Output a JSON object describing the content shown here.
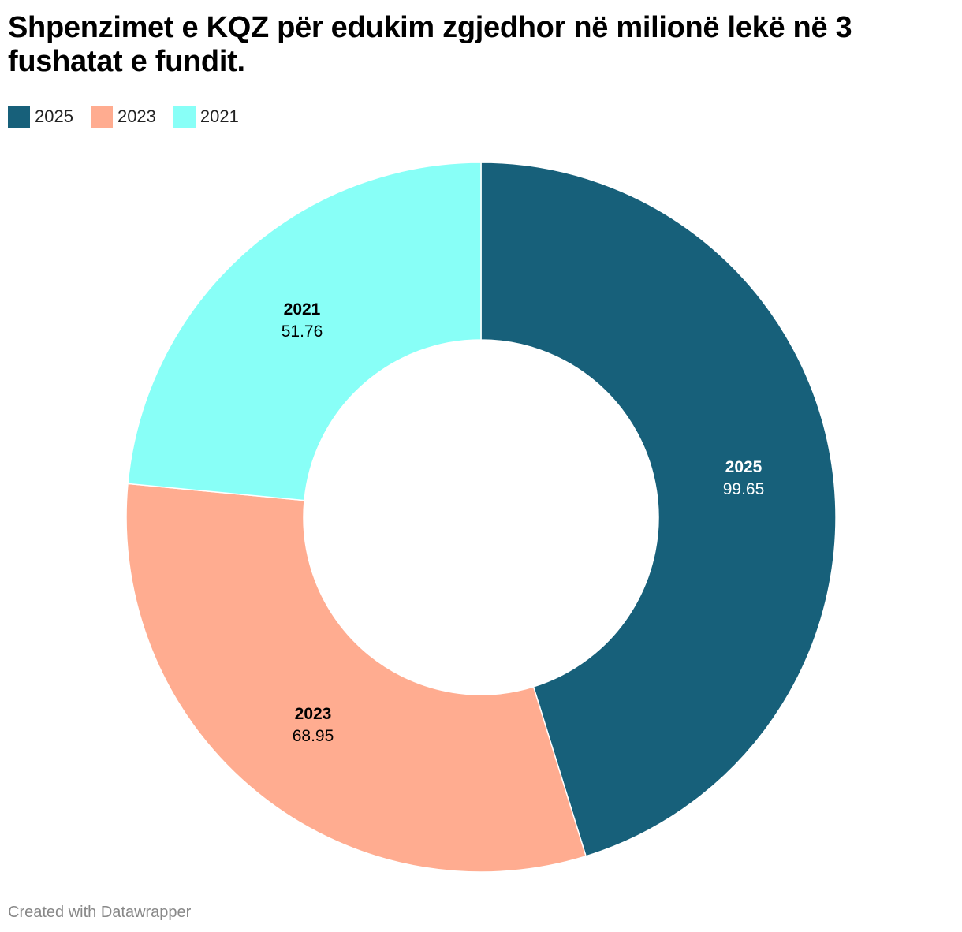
{
  "title": "Shpenzimet e KQZ për edukim zgjedhor në milionë lekë në 3 fushatat e fundit.",
  "legend": [
    {
      "label": "2025",
      "color": "#17607a"
    },
    {
      "label": "2023",
      "color": "#ffac90"
    },
    {
      "label": "2021",
      "color": "#88fff7"
    }
  ],
  "footer": "Created with Datawrapper",
  "slices": [
    {
      "year": "2025",
      "value": "99.65",
      "color": "#17607a",
      "text_color": "#ffffff"
    },
    {
      "year": "2023",
      "value": "68.95",
      "color": "#ffac90",
      "text_color": "#000000"
    },
    {
      "year": "2021",
      "value": "51.76",
      "color": "#88fff7",
      "text_color": "#000000"
    }
  ],
  "chart_data": {
    "type": "pie",
    "subtype": "donut",
    "title": "Shpenzimet e KQZ për edukim zgjedhor në milionë lekë në 3 fushatat e fundit.",
    "categories": [
      "2025",
      "2023",
      "2021"
    ],
    "values": [
      99.65,
      68.95,
      51.76
    ],
    "colors": [
      "#17607a",
      "#ffac90",
      "#88fff7"
    ],
    "unit": "milionë lekë",
    "legend_position": "top-left"
  }
}
